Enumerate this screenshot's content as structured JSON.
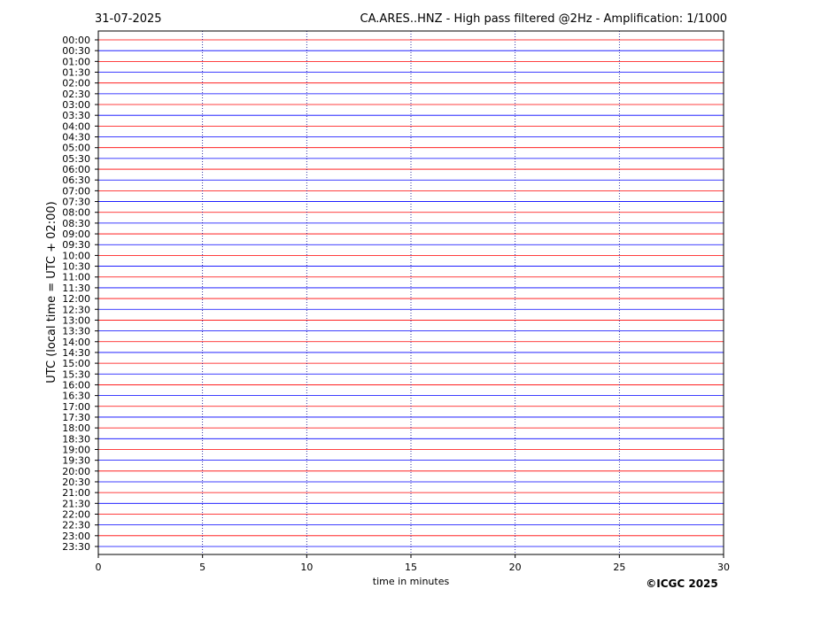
{
  "chart_data": {
    "type": "helicorder",
    "title_left": "31-07-2025",
    "title": "CA.ARES..HNZ - High pass filtered @2Hz - Amplification: 1/1000",
    "ylabel": "UTC (local time = UTC + 02:00)",
    "xlabel": "time in minutes",
    "credit": "©ICGC 2025",
    "categories": [
      "00:00",
      "00:30",
      "01:00",
      "01:30",
      "02:00",
      "02:30",
      "03:00",
      "03:30",
      "04:00",
      "04:30",
      "05:00",
      "05:30",
      "06:00",
      "06:30",
      "07:00",
      "07:30",
      "08:00",
      "08:30",
      "09:00",
      "09:30",
      "10:00",
      "10:30",
      "11:00",
      "11:30",
      "12:00",
      "12:30",
      "13:00",
      "13:30",
      "14:00",
      "14:30",
      "15:00",
      "15:30",
      "16:00",
      "16:30",
      "17:00",
      "17:30",
      "18:00",
      "18:30",
      "19:00",
      "19:30",
      "20:00",
      "20:30",
      "21:00",
      "21:30",
      "22:00",
      "22:30",
      "23:00",
      "23:30"
    ],
    "colors": [
      "#ff0000",
      "#0000ff"
    ],
    "xlim": [
      0,
      30
    ],
    "xticks": [
      0,
      5,
      10,
      15,
      20,
      25,
      30
    ],
    "grid": true
  }
}
